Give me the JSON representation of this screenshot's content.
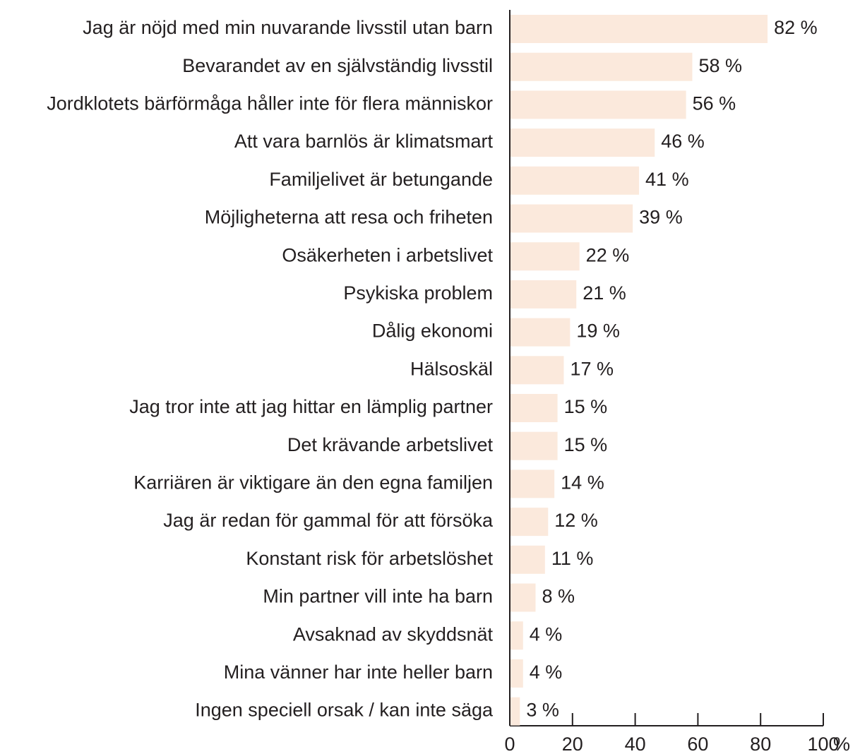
{
  "chart_data": {
    "type": "bar",
    "orientation": "horizontal",
    "categories": [
      "Jag är nöjd med min nuvarande livsstil utan barn",
      "Bevarandet av en självständig livsstil",
      "Jordklotets bärförmåga håller inte för flera människor",
      "Att vara barnlös är klimatsmart",
      "Familjelivet är betungande",
      "Möjligheterna att resa och friheten",
      "Osäkerheten i arbetslivet",
      "Psykiska problem",
      "Dålig ekonomi",
      "Hälsoskäl",
      "Jag tror inte att jag hittar en lämplig partner",
      "Det krävande arbetslivet",
      "Karriären är viktigare än den egna familjen",
      "Jag är redan för gammal för att försöka",
      "Konstant risk för arbetslöshet",
      "Min partner vill inte ha barn",
      "Avsaknad av skyddsnät",
      "Mina vänner har inte heller barn",
      "Ingen speciell orsak / kan inte säga"
    ],
    "values": [
      82,
      58,
      56,
      46,
      41,
      39,
      22,
      21,
      19,
      17,
      15,
      15,
      14,
      12,
      11,
      8,
      4,
      4,
      3
    ],
    "value_labels": [
      "82 %",
      "58 %",
      "56 %",
      "46 %",
      "41 %",
      "39 %",
      "22 %",
      "21 %",
      "19 %",
      "17 %",
      "15 %",
      "15 %",
      "14 %",
      "12 %",
      "11 %",
      "8 %",
      "4 %",
      "4 %",
      "3 %"
    ],
    "color": "#fbe9dc",
    "xlim": [
      0,
      100
    ],
    "xticks": [
      0,
      20,
      40,
      60,
      80,
      100
    ],
    "x_unit": "%"
  }
}
